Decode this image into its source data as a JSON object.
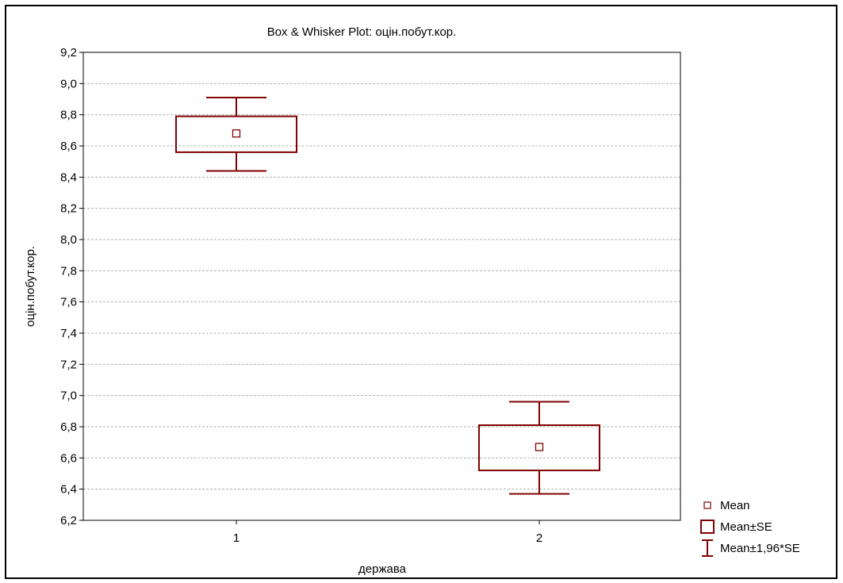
{
  "chart_data": {
    "type": "box",
    "title": "Box & Whisker Plot: оцін.побут.кор.",
    "xlabel": "держава",
    "ylabel": "оцін.побут.кор.",
    "ylim": [
      6.2,
      9.2
    ],
    "yticks": [
      "6,2",
      "6,4",
      "6,6",
      "6,8",
      "7,0",
      "7,2",
      "7,4",
      "7,6",
      "7,8",
      "8,0",
      "8,2",
      "8,4",
      "8,6",
      "8,8",
      "9,0",
      "9,2"
    ],
    "categories": [
      "1",
      "2"
    ],
    "grid": true,
    "legend_position": "bottom-right",
    "boxes": [
      {
        "category": "1",
        "mean": 8.68,
        "se_low": 8.56,
        "se_high": 8.79,
        "ci_low": 8.44,
        "ci_high": 8.91
      },
      {
        "category": "2",
        "mean": 6.67,
        "se_low": 6.52,
        "se_high": 6.81,
        "ci_low": 6.37,
        "ci_high": 6.96
      }
    ],
    "legend": [
      {
        "label": "Mean",
        "symbol": "point"
      },
      {
        "label": "Mean±SE",
        "symbol": "box"
      },
      {
        "label": "Mean±1,96*SE",
        "symbol": "whisker"
      }
    ],
    "colors": {
      "series": "#800000",
      "grid": "#b0b0b0",
      "axis": "#000000"
    }
  }
}
